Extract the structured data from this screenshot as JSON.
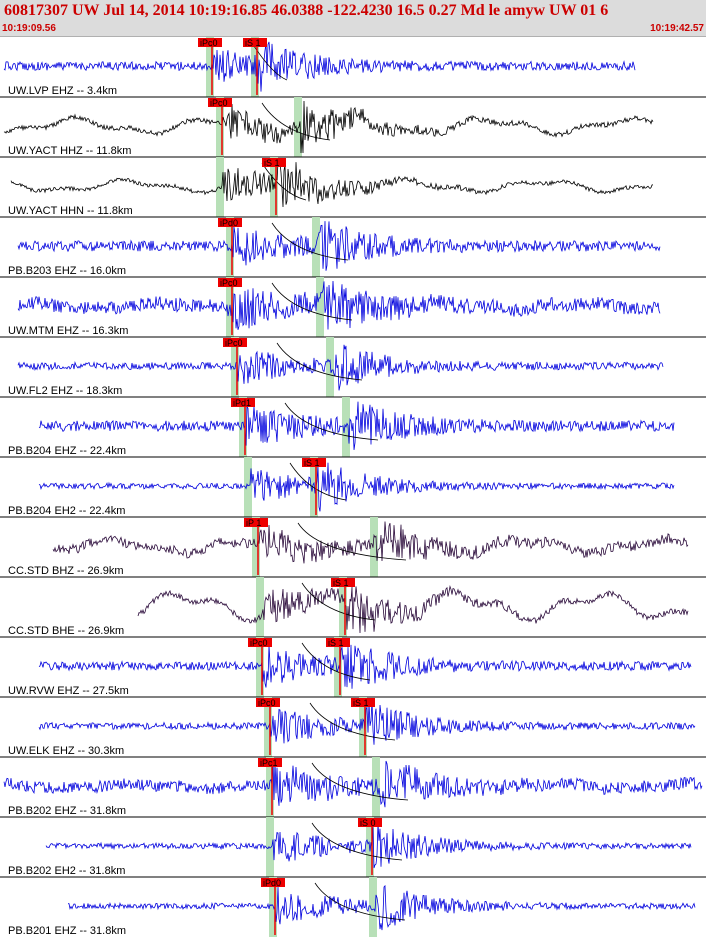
{
  "header": {
    "title": "60817307 UW Jul 14, 2014 10:19:16.85   46.0388 -122.4230 16.5 0.27 Md le amyw UW 01   6",
    "start_time": "10:19:09.56",
    "end_time": "10:19:42.57"
  },
  "colors": {
    "header_text": "#cc0000",
    "trace_blue": "#0000dd",
    "trace_black": "#000000",
    "trace_purple": "#2a0a3a",
    "pick_flag": "#ee0000",
    "pred_band": "#b8e0b8"
  },
  "traces": [
    {
      "label": "UW.LVP EHZ -- 3.4km",
      "color": "blue",
      "amp": 0.7,
      "noise": 0.18,
      "wave": 0,
      "p_pick": "iPc0",
      "s_pick": "iS 1",
      "start": 0.0,
      "end": 0.905
    },
    {
      "label": "UW.YACT HHZ -- 11.8km",
      "color": "black",
      "amp": 0.85,
      "noise": 0.1,
      "wave": 0.45,
      "p_pick": "iPc0",
      "s_pick": "",
      "start": 0.0,
      "end": 0.93
    },
    {
      "label": "UW.YACT HHN -- 11.8km",
      "color": "black",
      "amp": 0.85,
      "noise": 0.08,
      "wave": 0.35,
      "p_pick": "",
      "s_pick": "iS 1",
      "start": 0.01,
      "end": 0.93
    },
    {
      "label": "PB.B203 EHZ -- 16.0km",
      "color": "blue",
      "amp": 0.85,
      "noise": 0.22,
      "wave": 0,
      "p_pick": "iPd0",
      "s_pick": "",
      "start": 0.02,
      "end": 0.94
    },
    {
      "label": "UW.MTM EHZ -- 16.3km",
      "color": "blue",
      "amp": 0.85,
      "noise": 0.28,
      "wave": 0.2,
      "p_pick": "iPc0",
      "s_pick": "",
      "start": 0.02,
      "end": 0.94
    },
    {
      "label": "UW.FL2 EHZ -- 18.3km",
      "color": "blue",
      "amp": 0.8,
      "noise": 0.15,
      "wave": 0,
      "p_pick": "iPc0",
      "s_pick": "",
      "start": 0.02,
      "end": 0.945
    },
    {
      "label": "PB.B204 EHZ -- 22.4km",
      "color": "blue",
      "amp": 0.85,
      "noise": 0.22,
      "wave": 0,
      "p_pick": "iPd1",
      "s_pick": "",
      "start": 0.05,
      "end": 0.96
    },
    {
      "label": "PB.B204 EH2 -- 22.4km",
      "color": "blue",
      "amp": 0.8,
      "noise": 0.12,
      "wave": 0,
      "p_pick": "",
      "s_pick": "iS 1",
      "start": 0.05,
      "end": 0.96
    },
    {
      "label": "CC.STD BHZ -- 26.9km",
      "color": "purple",
      "amp": 0.7,
      "noise": 0.2,
      "wave": 0.4,
      "p_pick": "iP 1",
      "s_pick": "",
      "start": 0.07,
      "end": 0.98
    },
    {
      "label": "CC.STD BHE -- 26.9km",
      "color": "purple",
      "amp": 0.85,
      "noise": 0.12,
      "wave": 0.8,
      "p_pick": "",
      "s_pick": "iS 1",
      "start": 0.19,
      "end": 0.98
    },
    {
      "label": "UW.RVW EHZ -- 27.5km",
      "color": "blue",
      "amp": 0.85,
      "noise": 0.18,
      "wave": 0,
      "p_pick": "iPc0",
      "s_pick": "iS 1",
      "start": 0.05,
      "end": 0.985
    },
    {
      "label": "UW.ELK EHZ -- 30.3km",
      "color": "blue",
      "amp": 0.85,
      "noise": 0.14,
      "wave": 0,
      "p_pick": "iPc0",
      "s_pick": "iS 1",
      "start": 0.05,
      "end": 0.99
    },
    {
      "label": "PB.B202 EHZ -- 31.8km",
      "color": "blue",
      "amp": 0.85,
      "noise": 0.24,
      "wave": 0.15,
      "p_pick": "iPc1",
      "s_pick": "",
      "start": 0.0,
      "end": 1.0
    },
    {
      "label": "PB.B202 EH2 -- 31.8km",
      "color": "blue",
      "amp": 0.8,
      "noise": 0.12,
      "wave": 0,
      "p_pick": "",
      "s_pick": "iS 0",
      "start": 0.06,
      "end": 0.985
    },
    {
      "label": "PB.B201 EHZ -- 31.8km",
      "color": "blue",
      "amp": 0.85,
      "noise": 0.12,
      "wave": 0,
      "p_pick": "iPd0",
      "s_pick": "",
      "start": 0.09,
      "end": 0.99
    }
  ]
}
